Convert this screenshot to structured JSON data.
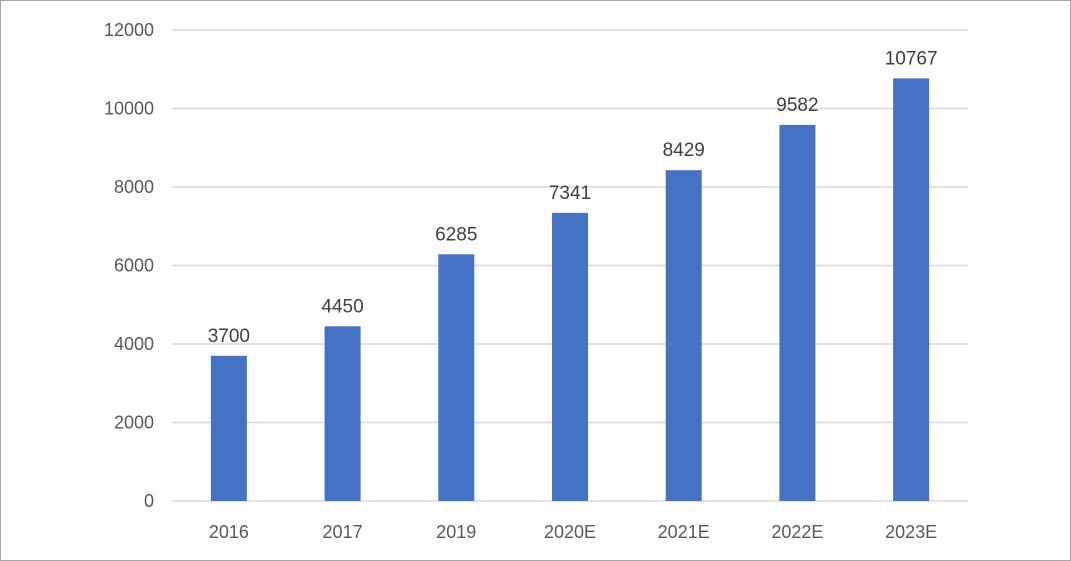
{
  "chart_data": {
    "type": "bar",
    "categories": [
      "2016",
      "2017",
      "2019",
      "2020E",
      "2021E",
      "2022E",
      "2023E"
    ],
    "series": [
      {
        "values": [
          3700,
          4450,
          6285,
          7341,
          8429,
          9582,
          10767
        ],
        "color": "#4472C4"
      }
    ],
    "data_labels": [
      "3700",
      "4450",
      "6285",
      "7341",
      "8429",
      "9582",
      "10767"
    ],
    "y_ticks": [
      "0",
      "2000",
      "4000",
      "6000",
      "8000",
      "10000",
      "12000"
    ],
    "ylim": [
      0,
      12000
    ],
    "grid": true,
    "legend": "none",
    "gridline_color": "#d9d9d9",
    "border_color": "#a6a6a6"
  }
}
